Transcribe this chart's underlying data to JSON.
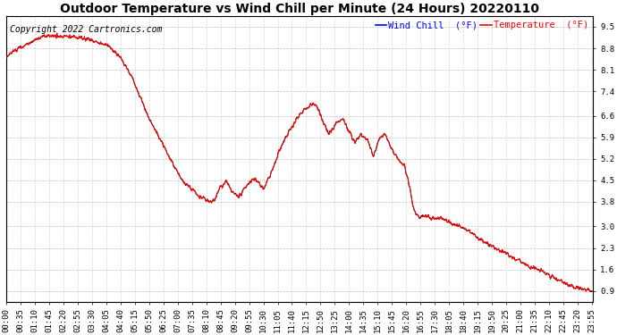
{
  "title": "Outdoor Temperature vs Wind Chill per Minute (24 Hours) 20220110",
  "copyright": "Copyright 2022 Cartronics.com",
  "legend_wind_chill": "Wind Chill  (°F)",
  "legend_temperature": "Temperature  (°F)",
  "wind_chill_color": "blue",
  "temperature_color": "red",
  "bg_color": "white",
  "grid_color": "#bbbbbb",
  "yticks": [
    0.9,
    1.6,
    2.3,
    3.0,
    3.8,
    4.5,
    5.2,
    5.9,
    6.6,
    7.4,
    8.1,
    8.8,
    9.5
  ],
  "ylim": [
    0.55,
    9.85
  ],
  "num_points": 1440,
  "label_every": 35,
  "title_fontsize": 10,
  "tick_fontsize": 6.5,
  "copyright_fontsize": 7
}
